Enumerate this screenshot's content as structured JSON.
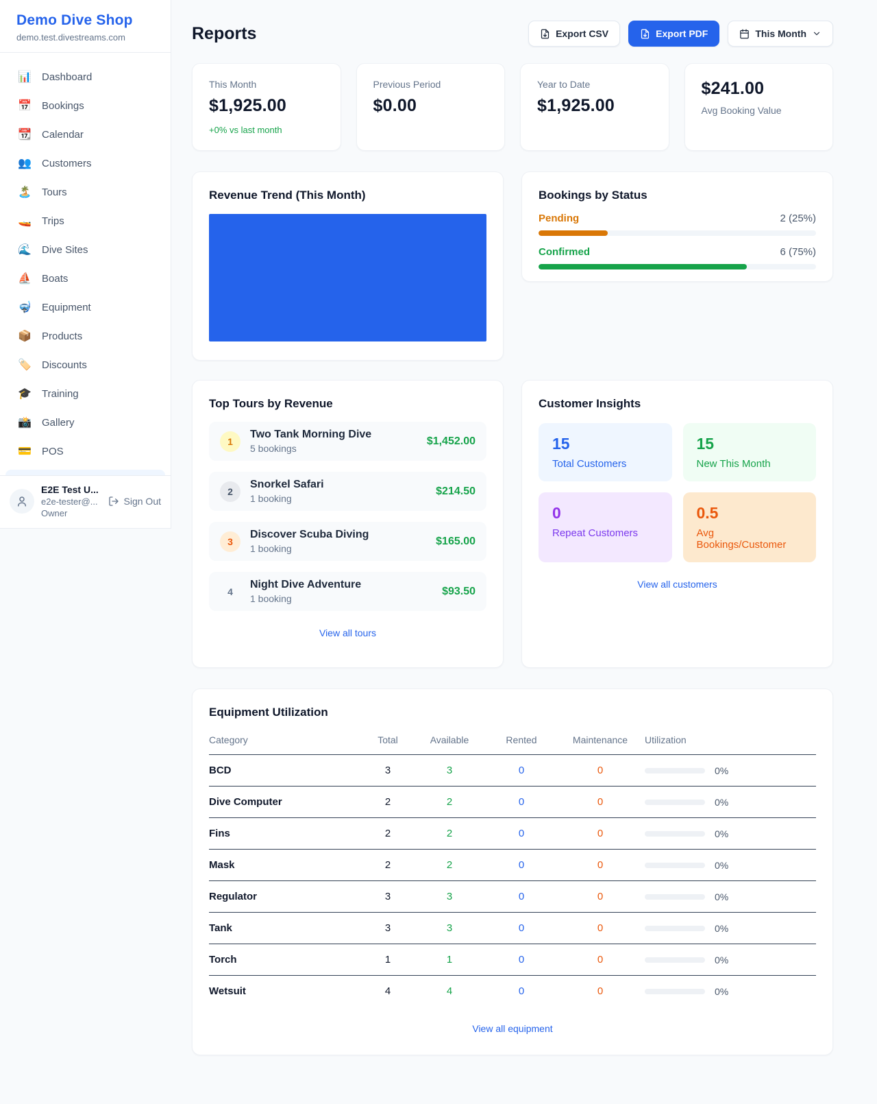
{
  "colors": {
    "accent": "#2563eb",
    "success": "#16a34a",
    "warning": "#d97706",
    "maintenance_orange": "#ea580c",
    "purple": "#9333ea",
    "page_background": "#f8fafc"
  },
  "sidebar": {
    "brand": {
      "name": "Demo Dive Shop",
      "domain": "demo.test.divestreams.com"
    },
    "items": [
      {
        "label": "Dashboard",
        "icon": "📊"
      },
      {
        "label": "Bookings",
        "icon": "📅"
      },
      {
        "label": "Calendar",
        "icon": "📆"
      },
      {
        "label": "Customers",
        "icon": "👥"
      },
      {
        "label": "Tours",
        "icon": "🏝️"
      },
      {
        "label": "Trips",
        "icon": "🚤"
      },
      {
        "label": "Dive Sites",
        "icon": "🌊"
      },
      {
        "label": "Boats",
        "icon": "⛵"
      },
      {
        "label": "Equipment",
        "icon": "🤿"
      },
      {
        "label": "Products",
        "icon": "📦"
      },
      {
        "label": "Discounts",
        "icon": "🏷️"
      },
      {
        "label": "Training",
        "icon": "🎓"
      },
      {
        "label": "Gallery",
        "icon": "📸"
      },
      {
        "label": "POS",
        "icon": "💳"
      }
    ],
    "user": {
      "name": "E2E Test U...",
      "email": "e2e-tester@...",
      "role": "Owner",
      "sign_out_label": "Sign Out"
    }
  },
  "header": {
    "title": "Reports",
    "export_csv_label": "Export CSV",
    "export_pdf_label": "Export PDF",
    "period_label": "This Month"
  },
  "stats": {
    "cards": [
      {
        "label": "This Month",
        "value": "$1,925.00",
        "delta": "+0% vs last month"
      },
      {
        "label": "Previous Period",
        "value": "$0.00"
      },
      {
        "label": "Year to Date",
        "value": "$1,925.00"
      },
      {
        "label": "Avg Booking Value",
        "value": "$241.00"
      }
    ]
  },
  "revenue_trend": {
    "title": "Revenue Trend (This Month)"
  },
  "chart_data": {
    "type": "bar",
    "title": "Revenue Trend (This Month)",
    "categories": [
      "(unlabeled)"
    ],
    "values": [
      100
    ],
    "value_unit": "percent-of-chart-area",
    "bar_color": "#2563eb",
    "note": "Chart area is rendered as one solid blue block filling the plot region; no axes, ticks, gridlines or data labels are visible."
  },
  "bookings_by_status": {
    "title": "Bookings by Status",
    "rows": [
      {
        "label": "Pending",
        "count_text": "2 (25%)",
        "percent": 25,
        "color": "#d97706"
      },
      {
        "label": "Confirmed",
        "count_text": "6 (75%)",
        "percent": 75,
        "color": "#16a34a"
      }
    ]
  },
  "top_tours": {
    "title": "Top Tours by Revenue",
    "view_all_label": "View all tours",
    "items": [
      {
        "rank": "1",
        "name": "Two Tank Morning Dive",
        "bookings": "5 bookings",
        "revenue": "$1,452.00"
      },
      {
        "rank": "2",
        "name": "Snorkel Safari",
        "bookings": "1 booking",
        "revenue": "$214.50"
      },
      {
        "rank": "3",
        "name": "Discover Scuba Diving",
        "bookings": "1 booking",
        "revenue": "$165.00"
      },
      {
        "rank": "4",
        "name": "Night Dive Adventure",
        "bookings": "1 booking",
        "revenue": "$93.50"
      }
    ]
  },
  "customer_insights": {
    "title": "Customer Insights",
    "view_all_label": "View all customers",
    "tiles": [
      {
        "value": "15",
        "label": "Total Customers"
      },
      {
        "value": "15",
        "label": "New This Month"
      },
      {
        "value": "0",
        "label": "Repeat Customers"
      },
      {
        "value": "0.5",
        "label": "Avg Bookings/Customer"
      }
    ]
  },
  "equipment": {
    "title": "Equipment Utilization",
    "view_all_label": "View all equipment",
    "columns": {
      "category": "Category",
      "total": "Total",
      "available": "Available",
      "rented": "Rented",
      "maintenance": "Maintenance",
      "utilization": "Utilization"
    },
    "rows": [
      {
        "category": "BCD",
        "total": "3",
        "available": "3",
        "rented": "0",
        "maintenance": "0",
        "utilization": "0%",
        "utilization_percent": 0
      },
      {
        "category": "Dive Computer",
        "total": "2",
        "available": "2",
        "rented": "0",
        "maintenance": "0",
        "utilization": "0%",
        "utilization_percent": 0
      },
      {
        "category": "Fins",
        "total": "2",
        "available": "2",
        "rented": "0",
        "maintenance": "0",
        "utilization": "0%",
        "utilization_percent": 0
      },
      {
        "category": "Mask",
        "total": "2",
        "available": "2",
        "rented": "0",
        "maintenance": "0",
        "utilization": "0%",
        "utilization_percent": 0
      },
      {
        "category": "Regulator",
        "total": "3",
        "available": "3",
        "rented": "0",
        "maintenance": "0",
        "utilization": "0%",
        "utilization_percent": 0
      },
      {
        "category": "Tank",
        "total": "3",
        "available": "3",
        "rented": "0",
        "maintenance": "0",
        "utilization": "0%",
        "utilization_percent": 0
      },
      {
        "category": "Torch",
        "total": "1",
        "available": "1",
        "rented": "0",
        "maintenance": "0",
        "utilization": "0%",
        "utilization_percent": 0
      },
      {
        "category": "Wetsuit",
        "total": "4",
        "available": "4",
        "rented": "0",
        "maintenance": "0",
        "utilization": "0%",
        "utilization_percent": 0
      }
    ]
  }
}
